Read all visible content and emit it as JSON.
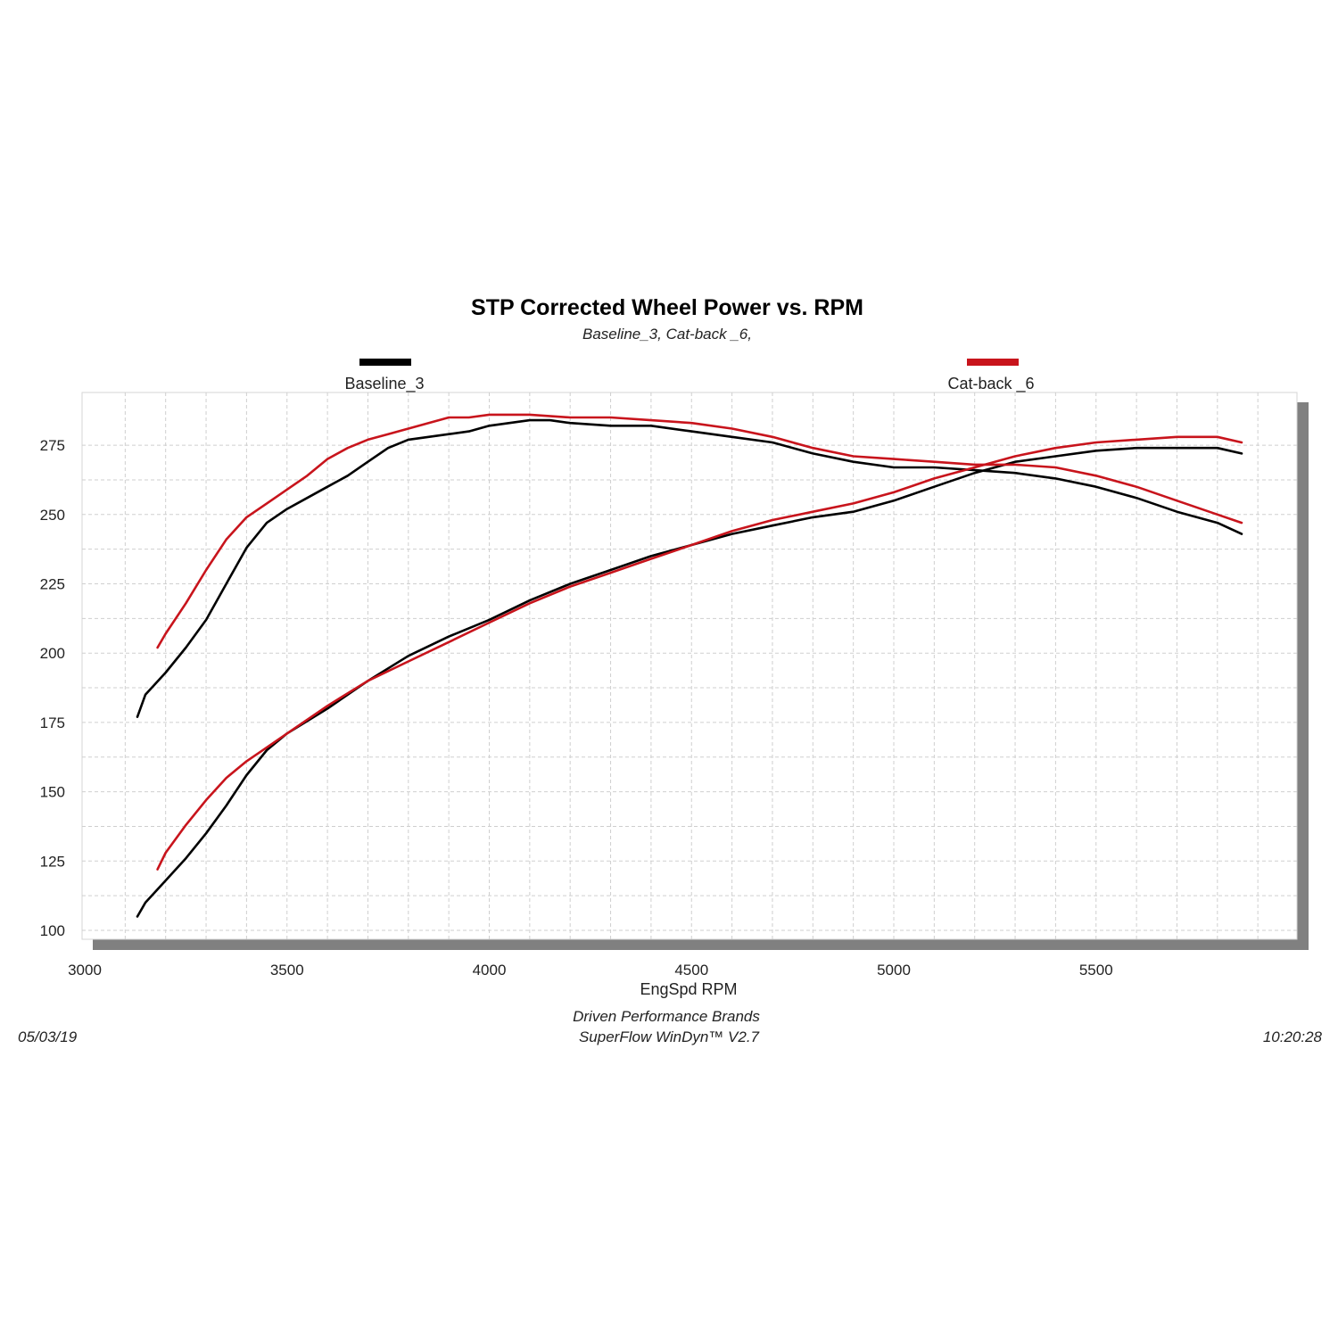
{
  "chart_data": {
    "type": "line",
    "title": "STP Corrected Wheel Power vs. RPM",
    "subtitle": "Baseline_3, Cat-back _6,",
    "xlabel": "EngSpd  RPM",
    "ylabel": "",
    "xlim": [
      3000,
      6000
    ],
    "ylim": [
      96,
      287
    ],
    "xticks": [
      3000,
      3500,
      4000,
      4500,
      5000,
      5500
    ],
    "yticks": [
      100,
      125,
      150,
      175,
      200,
      225,
      250,
      275
    ],
    "grid": true,
    "legend_position": "top",
    "series": [
      {
        "name": "Baseline_3",
        "color": "#000000",
        "curves": [
          {
            "label_role": "power-upper",
            "x": [
              3130,
              3150,
              3200,
              3250,
              3300,
              3350,
              3400,
              3450,
              3500,
              3550,
              3600,
              3650,
              3700,
              3750,
              3800,
              3850,
              3900,
              3950,
              4000,
              4050,
              4100,
              4150,
              4200,
              4300,
              4400,
              4500,
              4600,
              4700,
              4800,
              4900,
              5000,
              5100,
              5200,
              5300,
              5400,
              5500,
              5600,
              5700,
              5800,
              5860
            ],
            "y": [
              177,
              185,
              193,
              202,
              212,
              225,
              238,
              247,
              252,
              256,
              260,
              264,
              269,
              274,
              277,
              278,
              279,
              280,
              282,
              283,
              284,
              284,
              283,
              282,
              282,
              280,
              278,
              276,
              272,
              269,
              267,
              267,
              266,
              265,
              263,
              260,
              256,
              251,
              247,
              243
            ]
          },
          {
            "label_role": "torque-lower",
            "x": [
              3130,
              3150,
              3200,
              3250,
              3300,
              3350,
              3400,
              3450,
              3500,
              3600,
              3700,
              3800,
              3900,
              4000,
              4100,
              4200,
              4300,
              4400,
              4500,
              4600,
              4700,
              4800,
              4900,
              5000,
              5100,
              5200,
              5300,
              5400,
              5500,
              5600,
              5700,
              5800,
              5860
            ],
            "y": [
              105,
              110,
              118,
              126,
              135,
              145,
              156,
              165,
              171,
              180,
              190,
              199,
              206,
              212,
              219,
              225,
              230,
              235,
              239,
              243,
              246,
              249,
              251,
              255,
              260,
              265,
              269,
              271,
              273,
              274,
              274,
              274,
              272
            ]
          }
        ]
      },
      {
        "name": "Cat-back _6",
        "color": "#c8141c",
        "curves": [
          {
            "label_role": "power-upper",
            "x": [
              3180,
              3200,
              3250,
              3300,
              3350,
              3400,
              3450,
              3500,
              3550,
              3600,
              3650,
              3700,
              3750,
              3800,
              3850,
              3900,
              3950,
              4000,
              4050,
              4100,
              4200,
              4300,
              4400,
              4500,
              4600,
              4700,
              4800,
              4900,
              5000,
              5100,
              5200,
              5300,
              5400,
              5500,
              5600,
              5700,
              5800,
              5860
            ],
            "y": [
              202,
              207,
              218,
              230,
              241,
              249,
              254,
              259,
              264,
              270,
              274,
              277,
              279,
              281,
              283,
              285,
              285,
              286,
              286,
              286,
              285,
              285,
              284,
              283,
              281,
              278,
              274,
              271,
              270,
              269,
              268,
              268,
              267,
              264,
              260,
              255,
              250,
              247
            ]
          },
          {
            "label_role": "torque-lower",
            "x": [
              3180,
              3200,
              3250,
              3300,
              3350,
              3400,
              3450,
              3500,
              3600,
              3700,
              3800,
              3900,
              4000,
              4100,
              4200,
              4300,
              4400,
              4500,
              4600,
              4700,
              4800,
              4900,
              5000,
              5100,
              5200,
              5300,
              5400,
              5500,
              5600,
              5700,
              5800,
              5860
            ],
            "y": [
              122,
              128,
              138,
              147,
              155,
              161,
              166,
              171,
              181,
              190,
              197,
              204,
              211,
              218,
              224,
              229,
              234,
              239,
              244,
              248,
              251,
              254,
              258,
              263,
              267,
              271,
              274,
              276,
              277,
              278,
              278,
              276
            ]
          }
        ]
      }
    ],
    "footer": {
      "date": "05/03/19",
      "company": "Driven Performance Brands",
      "software": "SuperFlow WinDyn™  V2.7",
      "time": "10:20:28"
    }
  }
}
